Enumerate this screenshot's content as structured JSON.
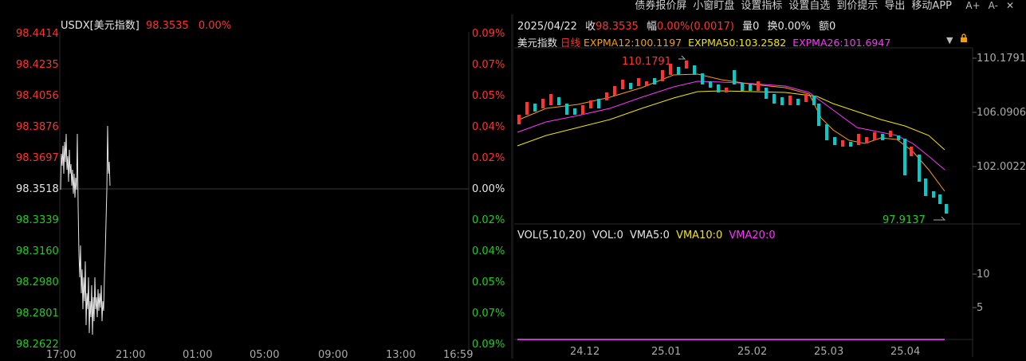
{
  "top_menu": [
    "债券报价屏",
    "小窗盯盘",
    "设置指标",
    "设置自选",
    "到价提示",
    "导出",
    "移动APP"
  ],
  "font_buttons": [
    "A+",
    "A-",
    "✕"
  ],
  "intraday": {
    "symbol": "USDX[美元指数]",
    "price": "98.3535",
    "change_pct": "0.00%",
    "price_axis": [
      "98.4414",
      "98.4235",
      "98.4056",
      "98.3876",
      "98.3697",
      "98.3518",
      "98.3339",
      "98.3160",
      "98.2980",
      "98.2801",
      "98.2622"
    ],
    "pct_axis": [
      "0.09%",
      "0.07%",
      "0.05%",
      "0.04%",
      "0.02%",
      "0.00%",
      "0.02%",
      "0.04%",
      "0.05%",
      "0.07%",
      "0.09%"
    ],
    "time_axis": [
      "17:00",
      "21:00",
      "01:00",
      "05:00",
      "09:00",
      "13:00",
      "16:59"
    ]
  },
  "kline": {
    "info_bar": {
      "date": "2025/04/22",
      "close_label": "收",
      "close": "98.3535",
      "range_label": "幅",
      "range": "0.00%(0.0017)",
      "volume_label": "量",
      "volume": "0",
      "turnover_label": "换",
      "turnover": "0.00%",
      "amount_label": "额",
      "amount": "0"
    },
    "indicator_bar": {
      "name": "美元指数",
      "period": "日线",
      "ema12": "EXPMA12:100.1197",
      "ema50": "EXPMA50:103.2582",
      "ema26": "EXPMA26:101.6947"
    },
    "high_marker": "110.1791",
    "low_marker": "97.9137",
    "price_axis": [
      "110.1791",
      "106.0906",
      "102.0022"
    ],
    "volume_bar": {
      "label": "VOL(5,10,20)",
      "vol": "VOL:0",
      "vma5": "VMA5:0",
      "vma10": "VMA10:0",
      "vma20": "VMA20:0"
    },
    "volume_axis": [
      "10",
      "5"
    ],
    "date_axis": [
      "24.12",
      "25.01",
      "25.02",
      "25.03",
      "25.04"
    ]
  },
  "colors": {
    "up": "#ff3333",
    "down": "#00cccc",
    "ema12": "#ff9d00",
    "ema50": "#f2e600",
    "ema26": "#ff33ff"
  }
}
